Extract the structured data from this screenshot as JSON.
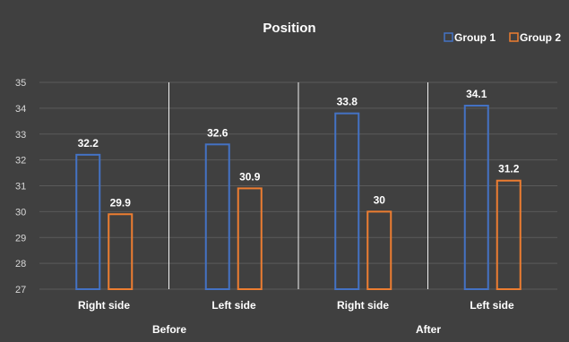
{
  "chart_data": {
    "type": "bar",
    "title": "Position",
    "categories": [
      "Right side",
      "Left side",
      "Right side",
      "Left side"
    ],
    "groups": [
      {
        "label": "Before",
        "categories": [
          0,
          1
        ]
      },
      {
        "label": "After",
        "categories": [
          2,
          3
        ]
      }
    ],
    "series": [
      {
        "name": "Group 1",
        "values": [
          32.2,
          32.6,
          33.8,
          34.1
        ],
        "color": "#4472c4"
      },
      {
        "name": "Group 2",
        "values": [
          29.9,
          30.9,
          30,
          31.2
        ],
        "color": "#ed7d31"
      }
    ],
    "ylim": [
      27,
      35
    ],
    "yticks": [
      27,
      28,
      29,
      30,
      31,
      32,
      33,
      34,
      35
    ],
    "grid": true,
    "legend_position": "top-right",
    "background": "#404040",
    "gridline_color": "#5a5a5a"
  }
}
